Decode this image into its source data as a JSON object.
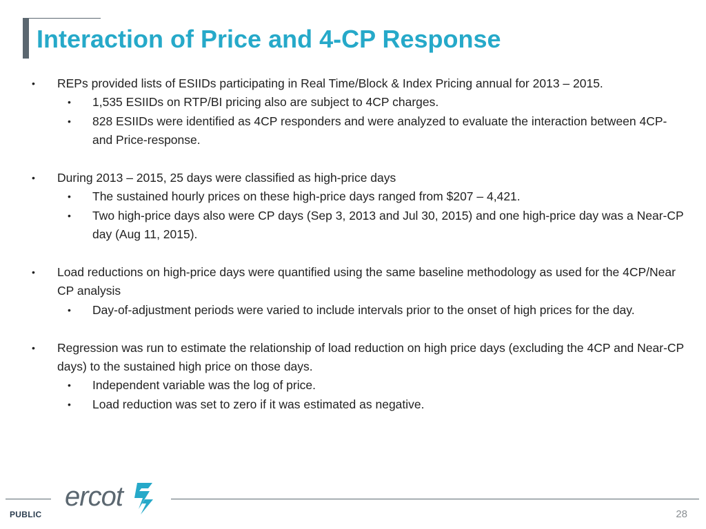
{
  "slide": {
    "title": "Interaction of Price and 4-CP Response",
    "bullets": [
      {
        "text": "REPs provided lists of ESIIDs participating in Real Time/Block & Index Pricing annual for 2013 – 2015.",
        "subs": [
          "1,535 ESIIDs on RTP/BI pricing also are subject to 4CP charges.",
          "828 ESIIDs were identified as 4CP responders and were analyzed to evaluate the interaction between 4CP- and Price-response."
        ]
      },
      {
        "text": "During 2013 – 2015, 25 days were classified as high-price days",
        "subs": [
          "The sustained hourly prices on these high-price days ranged from $207 – 4,421.",
          "Two high-price days also were CP days (Sep 3, 2013 and Jul 30, 2015) and one high-price day was a Near-CP day (Aug 11, 2015)."
        ]
      },
      {
        "text": "Load reductions on high-price days were quantified using the same baseline methodology as used for the 4CP/Near CP analysis",
        "subs": [
          "Day-of-adjustment periods were varied to include intervals prior to the onset of high prices for the day."
        ]
      },
      {
        "text": "Regression was run to estimate the relationship of load reduction on high price days (excluding the 4CP and Near-CP days) to the sustained high price on those days.",
        "subs": [
          "Independent variable was the log of price.",
          "Load reduction was set to zero if it was estimated as negative."
        ]
      }
    ],
    "bullet_symbol": "•"
  },
  "footer": {
    "classification": "PUBLIC",
    "logo_text": "ercot",
    "page_number": "28",
    "logo_icon": "ercot-lightning-icon"
  },
  "colors": {
    "title": "#26a9c9",
    "accent_gray": "#5b6770",
    "body_text": "#222222",
    "logo_mark": "#26a9c9"
  }
}
